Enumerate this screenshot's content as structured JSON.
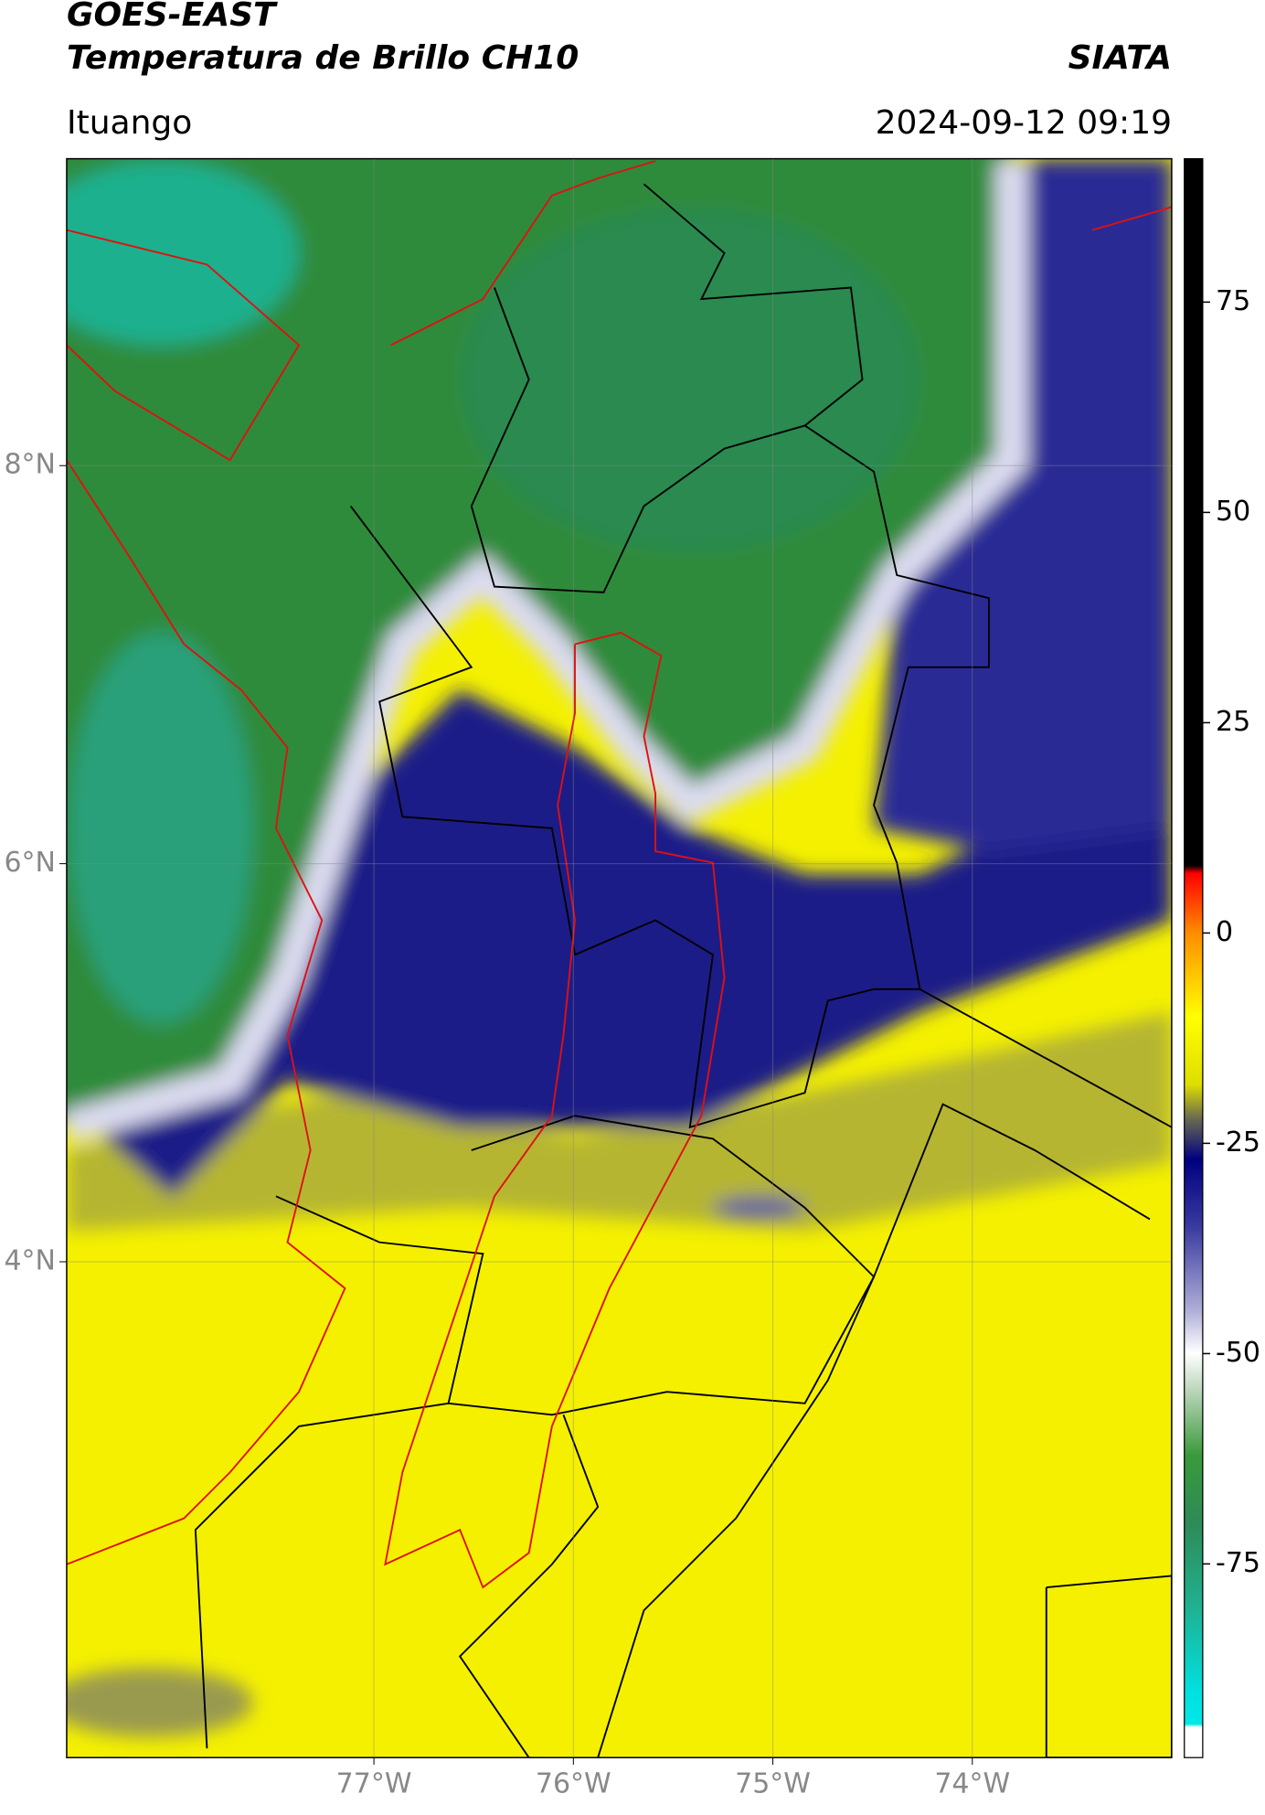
{
  "header": {
    "title": "GOES-EAST",
    "subtitle": "Temperatura de Brillo CH10",
    "brand": "SIATA",
    "location": "Ituango",
    "datetime": "2024-09-12 09:19"
  },
  "map": {
    "xlim": [
      -78.54,
      -73.0
    ],
    "ylim": [
      1.51,
      9.54
    ],
    "xticks": [
      {
        "value": -77,
        "label": "77°W"
      },
      {
        "value": -76,
        "label": "76°W"
      },
      {
        "value": -75,
        "label": "75°W"
      },
      {
        "value": -74,
        "label": "74°W"
      }
    ],
    "yticks": [
      {
        "value": 8,
        "label": "8°N"
      },
      {
        "value": 6,
        "label": "6°N"
      },
      {
        "value": 4,
        "label": "4°N"
      }
    ],
    "grid": true
  },
  "colorbar": {
    "lim": [
      -98,
      92
    ],
    "ticks": [
      75,
      50,
      25,
      0,
      -25,
      -50,
      -75
    ]
  }
}
